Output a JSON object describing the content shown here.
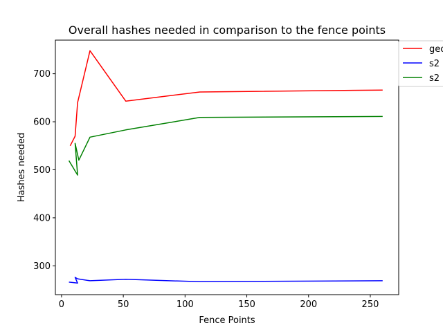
{
  "chart_data": {
    "type": "line",
    "title": "Overall hashes needed in comparison to the fence points",
    "xlabel": "Fence Points",
    "ylabel": "Hashes needed",
    "xlim": [
      -5,
      273
    ],
    "ylim": [
      240,
      770
    ],
    "xticks": [
      0,
      50,
      100,
      150,
      200,
      250
    ],
    "yticks": [
      300,
      400,
      500,
      600,
      700
    ],
    "grid": false,
    "legend_position": "outside-right",
    "series": [
      {
        "name": "geo",
        "color": "#ff0000",
        "x": [
          7,
          11,
          13,
          23,
          52,
          112,
          260
        ],
        "y": [
          550,
          570,
          640,
          748,
          643,
          662,
          666
        ]
      },
      {
        "name": "s2",
        "color": "#0000ff",
        "x": [
          6,
          13,
          11,
          13,
          23,
          52,
          112,
          260
        ],
        "y": [
          266,
          264,
          276,
          273,
          269,
          272,
          267,
          269
        ]
      },
      {
        "name": "s2",
        "color": "#008000",
        "x": [
          6,
          13,
          11,
          14,
          23,
          52,
          112,
          260
        ],
        "y": [
          519,
          489,
          555,
          520,
          568,
          583,
          609,
          611
        ]
      }
    ]
  }
}
